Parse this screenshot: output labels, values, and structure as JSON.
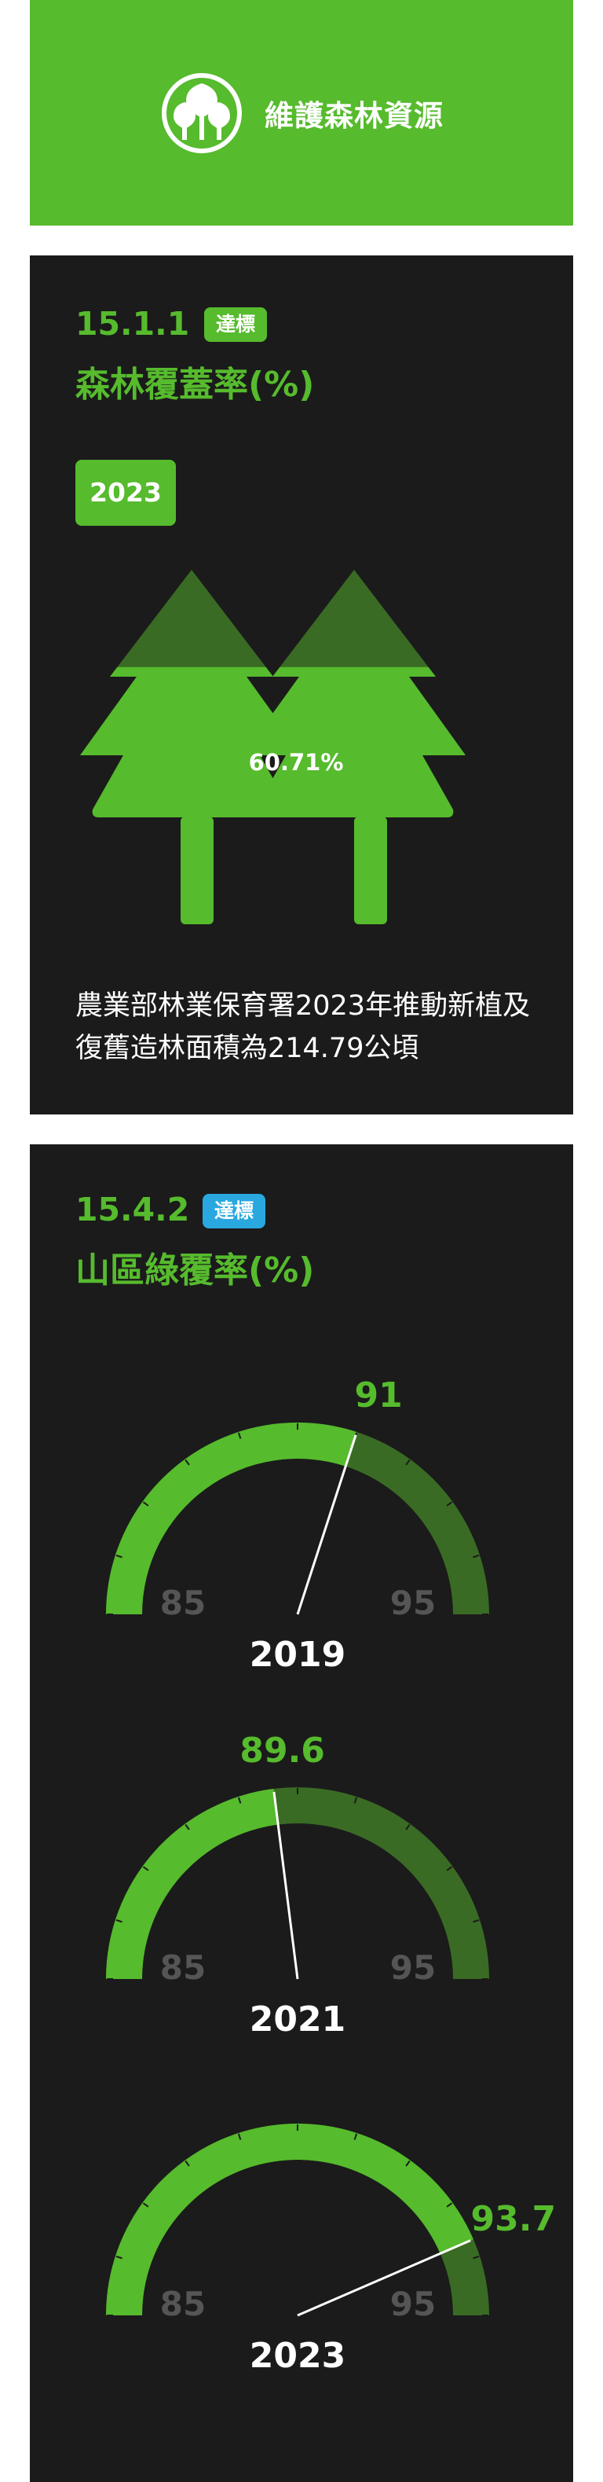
{
  "header": {
    "title": "維護森林資源",
    "icon": "three-trees-icon"
  },
  "forest_coverage": {
    "code": "15.1.1",
    "badge": "達標",
    "title": "森林覆蓋率(%)",
    "year": "2023",
    "value_label": "60.71%",
    "value": 60.71,
    "note": "農業部林業保育署2023年推動新植及復舊造林面積為214.79公頃"
  },
  "mountain_green": {
    "code": "15.4.2",
    "badge": "達標",
    "title": "山區綠覆率(%)",
    "gauges": [
      {
        "year": "2019",
        "value": 91,
        "value_label": "91",
        "min_label": "85",
        "max_label": "95"
      },
      {
        "year": "2021",
        "value": 89.6,
        "value_label": "89.6",
        "min_label": "85",
        "max_label": "95"
      },
      {
        "year": "2023",
        "value": 93.7,
        "value_label": "93.7",
        "min_label": "85",
        "max_label": "95"
      }
    ]
  },
  "colors": {
    "green": "#56bb2d",
    "dark_green": "#3a6b24",
    "panel": "#1b1b1b",
    "badge_green": "#56bb2d",
    "badge_blue": "#29a8e0",
    "scale_label": "#555555"
  }
}
